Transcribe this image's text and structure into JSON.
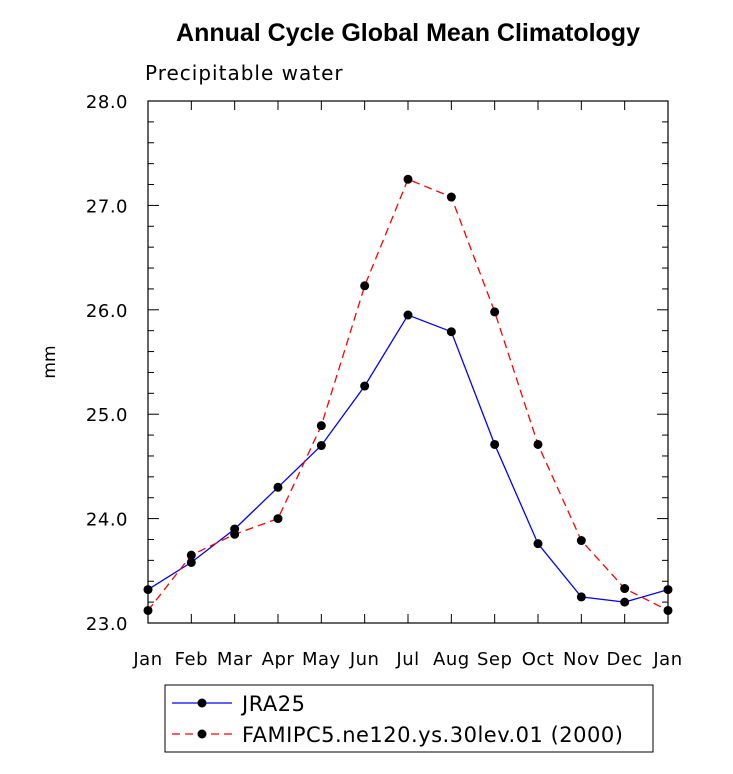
{
  "chart_data": {
    "type": "line",
    "title": "Annual Cycle Global Mean Climatology",
    "subtitle": "Precipitable water",
    "ylabel": "mm",
    "xlabel": "",
    "categories": [
      "Jan",
      "Feb",
      "Mar",
      "Apr",
      "May",
      "Jun",
      "Jul",
      "Aug",
      "Sep",
      "Oct",
      "Nov",
      "Dec",
      "Jan"
    ],
    "ylim": [
      23.0,
      28.0
    ],
    "yticks": [
      "23.0",
      "24.0",
      "25.0",
      "26.0",
      "27.0",
      "28.0"
    ],
    "grid": false,
    "legend_position": "bottom",
    "series": [
      {
        "name": "JRA25",
        "color": "#0000ff",
        "style": "solid",
        "values": [
          23.32,
          23.58,
          23.9,
          24.3,
          24.7,
          25.27,
          25.95,
          25.79,
          24.71,
          23.76,
          23.25,
          23.2,
          23.32
        ]
      },
      {
        "name": "FAMIPC5.ne120.ys.30lev.01 (2000)",
        "color": "#ff0000",
        "style": "dashed",
        "values": [
          23.12,
          23.65,
          23.85,
          24.0,
          24.89,
          26.23,
          27.25,
          27.08,
          25.98,
          24.71,
          23.79,
          23.33,
          23.12
        ]
      }
    ]
  }
}
